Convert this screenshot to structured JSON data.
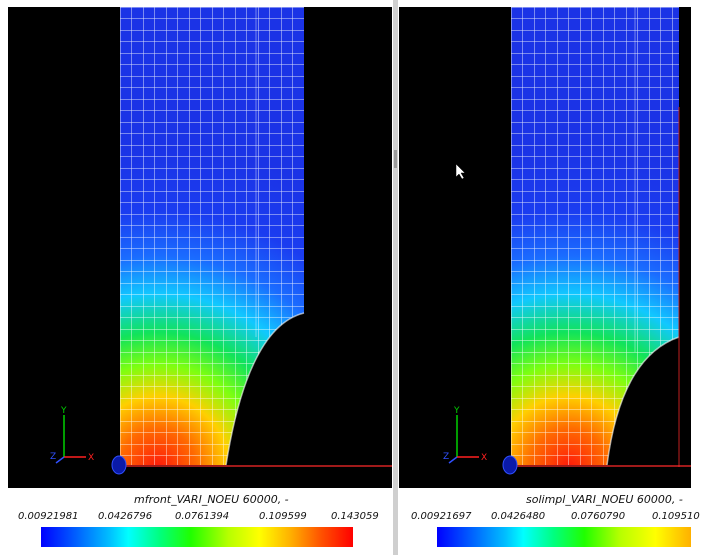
{
  "panels": [
    {
      "id": "left",
      "field_title": "mfront_VARI_NOEU 60000, -",
      "ticks": [
        "0.00921981",
        "0.0426796",
        "0.0761394",
        "0.109599",
        "0.143059"
      ],
      "axis_labels": {
        "y": "Y",
        "z": "Z",
        "x": "X"
      }
    },
    {
      "id": "right",
      "field_title": "solimpl_VARI_NOEU 60000, -",
      "ticks": [
        "0.00921697",
        "0.0426480",
        "0.0760790",
        "0.109510"
      ],
      "axis_labels": {
        "y": "Y",
        "z": "Z",
        "x": "X"
      }
    }
  ],
  "colors": {
    "viewport_bg": "#000000",
    "mesh_low": "#1b3cf0",
    "mesh_high": "#ff1a0a",
    "grid_lines": "#ffffff",
    "symmetry_line": "#ff2a2a"
  }
}
